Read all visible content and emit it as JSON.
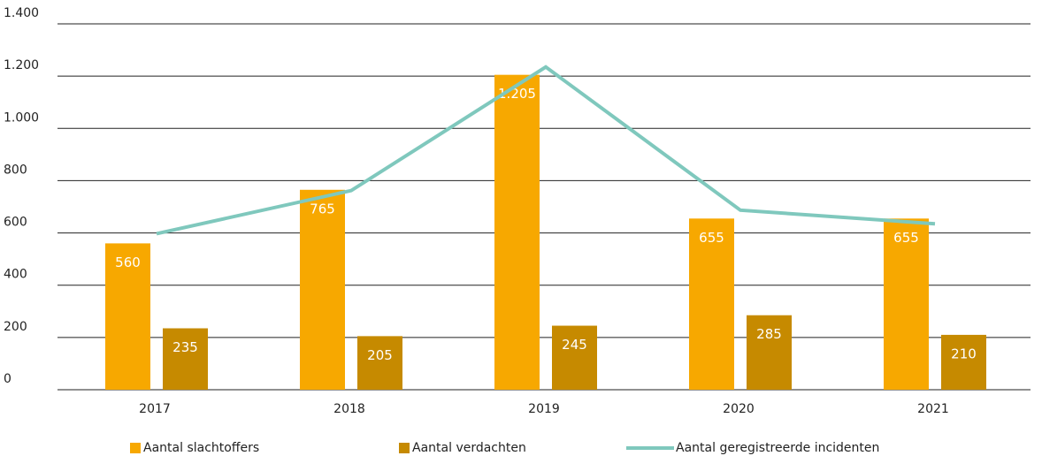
{
  "chart_data": {
    "type": "bar",
    "categories": [
      "2017",
      "2018",
      "2019",
      "2020",
      "2021"
    ],
    "series": [
      {
        "name": "Aantal slachtoffers",
        "color": "#f7a800",
        "values": [
          560,
          765,
          1205,
          655,
          655
        ],
        "value_labels": [
          "560",
          "765",
          "1.205",
          "655",
          "655"
        ]
      },
      {
        "name": "Aantal verdachten",
        "color": "#c68a00",
        "values": [
          235,
          205,
          245,
          285,
          210
        ],
        "value_labels": [
          "235",
          "205",
          "245",
          "285",
          "210"
        ]
      },
      {
        "name": "Aantal geregistreerde incidenten",
        "color": "#7fc8bd",
        "type": "line",
        "values": [
          597,
          762,
          1235,
          687,
          635
        ]
      }
    ],
    "ylim": [
      0,
      1400
    ],
    "yticks": [
      0,
      200,
      400,
      600,
      800,
      {
        "value": 1000,
        "label": "1.000"
      },
      {
        "value": 1200,
        "label": "1.200"
      },
      {
        "value": 1400,
        "label": "1.400"
      }
    ],
    "grid": true
  }
}
